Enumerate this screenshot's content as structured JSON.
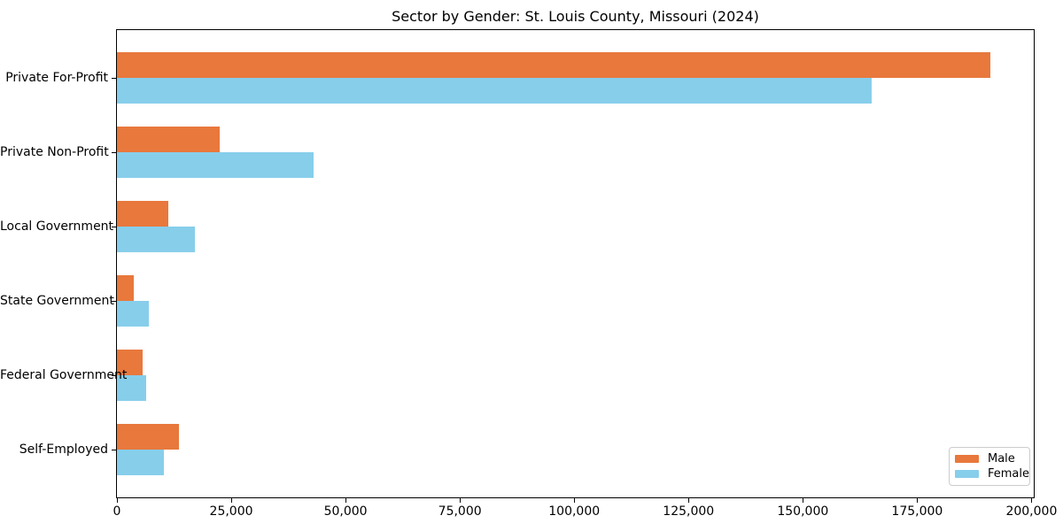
{
  "chart_data": {
    "type": "bar",
    "orientation": "horizontal",
    "title": "Sector by Gender: St. Louis County, Missouri (2024)",
    "categories": [
      "Private For-Profit",
      "Private Non-Profit",
      "Local Government",
      "State Government",
      "Federal Government",
      "Self-Employed"
    ],
    "series": [
      {
        "name": "Male",
        "color": "#e8783c",
        "values": [
          191000,
          22500,
          11200,
          3600,
          5700,
          13500
        ]
      },
      {
        "name": "Female",
        "color": "#87ceeb",
        "values": [
          165000,
          43000,
          17000,
          6900,
          6400,
          10300
        ]
      }
    ],
    "xlabel": "",
    "ylabel": "",
    "xlim": [
      0,
      200500
    ],
    "x_ticks": [
      {
        "value": 0,
        "label": "0"
      },
      {
        "value": 25000,
        "label": "25,000"
      },
      {
        "value": 50000,
        "label": "50,000"
      },
      {
        "value": 75000,
        "label": "75,000"
      },
      {
        "value": 100000,
        "label": "100,000"
      },
      {
        "value": 125000,
        "label": "125,000"
      },
      {
        "value": 150000,
        "label": "150,000"
      },
      {
        "value": 175000,
        "label": "175,000"
      },
      {
        "value": 200000,
        "label": "200,000"
      }
    ],
    "grid": false,
    "legend_position": "lower right"
  }
}
